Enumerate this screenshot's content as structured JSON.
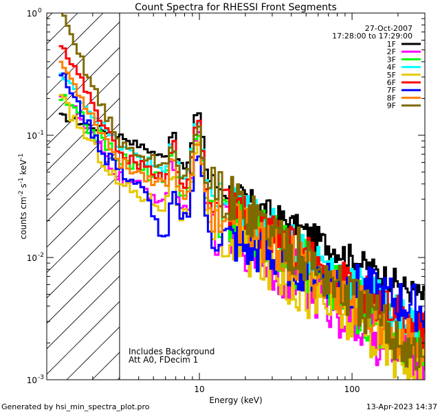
{
  "chart_data": {
    "type": "line",
    "title": "Count Spectra for RHESSI Front Segments",
    "xlabel": "Energy (keV)",
    "ylabel_parts": [
      "counts cm",
      "-2",
      " s",
      "-1",
      " keV",
      "-1"
    ],
    "xscale": "log",
    "yscale": "log",
    "xlim": [
      1.0,
      300.0
    ],
    "ylim": [
      0.001,
      1.0
    ],
    "x_ticks": [
      {
        "v": 10,
        "label": "10"
      },
      {
        "v": 100,
        "label": "100"
      }
    ],
    "y_ticks": [
      {
        "v": 1,
        "base": "10",
        "exp": "0"
      },
      {
        "v": 0.1,
        "base": "10",
        "exp": "-1"
      },
      {
        "v": 0.01,
        "base": "10",
        "exp": "-2"
      },
      {
        "v": 0.001,
        "base": "10",
        "exp": "-3"
      }
    ],
    "date": "27-Oct-2007",
    "time_range": "17:28:00 to 17:29:00",
    "annotations": [
      "Includes Background",
      "Att A0, FDecim 1"
    ],
    "shaded_region_xmax": 3.0,
    "series": [
      {
        "name": "1F",
        "color": "#000000",
        "peak": 0.15,
        "low": 0.14,
        "mid": 0.1,
        "tail": 0.0075,
        "noise": 0.25
      },
      {
        "name": "2F",
        "color": "#ff00ff",
        "peak": 0.1,
        "low": 0.21,
        "mid": 0.045,
        "tail": 0.0022,
        "noise": 0.55
      },
      {
        "name": "3F",
        "color": "#00ff00",
        "peak": 0.09,
        "low": 0.19,
        "mid": 0.065,
        "tail": 0.003,
        "noise": 0.55
      },
      {
        "name": "4F",
        "color": "#00ffff",
        "peak": 0.13,
        "low": 0.29,
        "mid": 0.08,
        "tail": 0.0045,
        "noise": 0.4
      },
      {
        "name": "5F",
        "color": "#e6c800",
        "peak": 0.08,
        "low": 0.18,
        "mid": 0.04,
        "tail": 0.0022,
        "noise": 0.55
      },
      {
        "name": "6F",
        "color": "#ff0000",
        "peak": 0.13,
        "low": 0.52,
        "mid": 0.07,
        "tail": 0.0042,
        "noise": 0.4
      },
      {
        "name": "7F",
        "color": "#0000ff",
        "peak": 0.07,
        "low": 0.29,
        "mid": 0.04,
        "tail": 0.005,
        "noise": 0.45
      },
      {
        "name": "8F",
        "color": "#ff8000",
        "peak": 0.09,
        "low": 0.36,
        "mid": 0.06,
        "tail": 0.003,
        "noise": 0.45
      },
      {
        "name": "9F",
        "color": "#7f6a00",
        "peak": 0.1,
        "low": 0.85,
        "mid": 0.085,
        "tail": 0.003,
        "noise": 0.5
      }
    ]
  },
  "footer": {
    "left": "Generated by hsi_min_spectra_plot.pro",
    "right": "13-Apr-2023 14:37"
  }
}
